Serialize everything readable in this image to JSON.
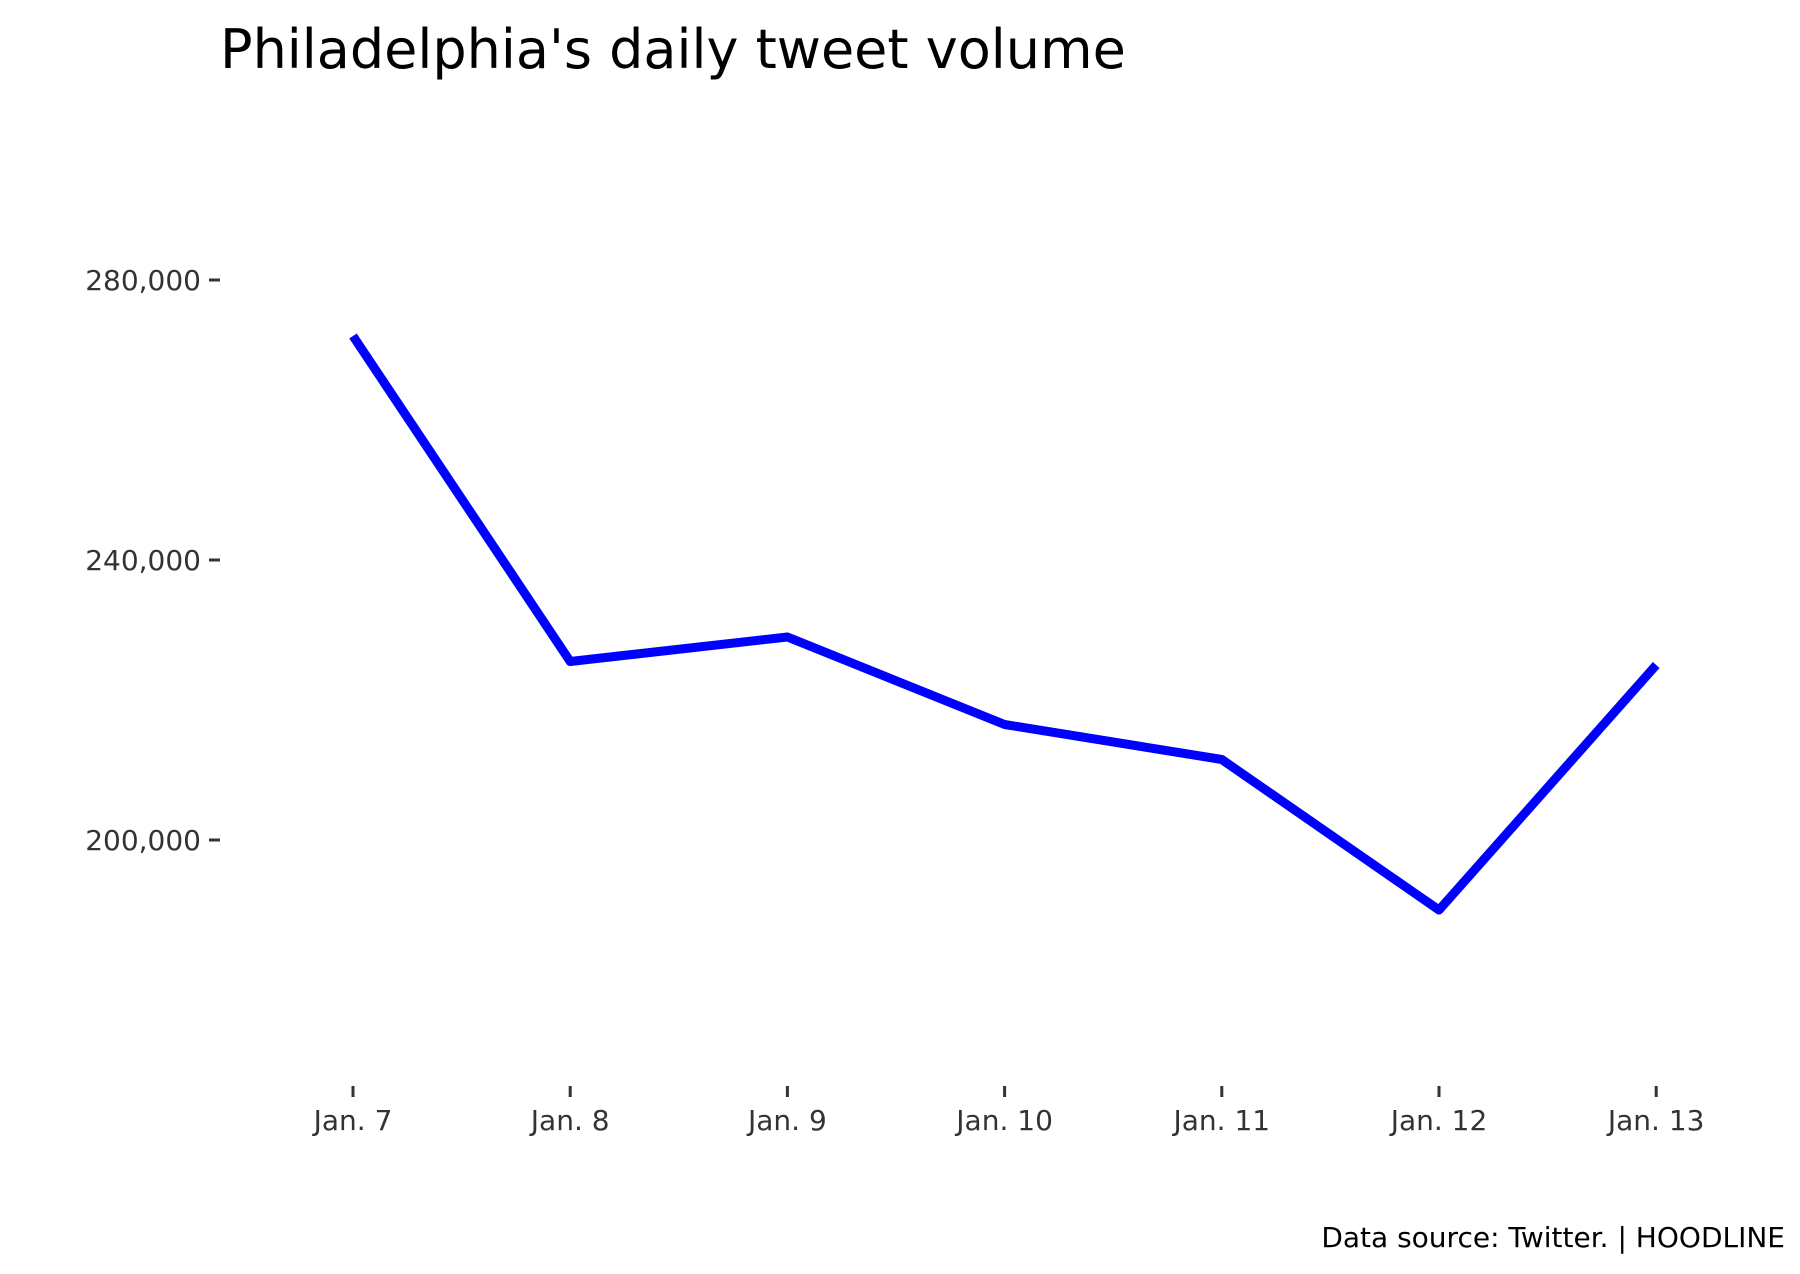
{
  "chart_data": {
    "type": "line",
    "title": "Philadelphia's daily tweet volume",
    "caption": "Data source: Twitter. | HOODLINE",
    "xlabel": "",
    "ylabel": "",
    "categories": [
      "Jan. 7",
      "Jan. 8",
      "Jan. 9",
      "Jan. 10",
      "Jan. 11",
      "Jan. 12",
      "Jan. 13"
    ],
    "series": [
      {
        "values": [
          272000,
          225500,
          229000,
          216500,
          211500,
          190000,
          225000
        ]
      }
    ],
    "yticks": [
      200000,
      240000,
      280000
    ],
    "ytick_labels": [
      "200,000",
      "240,000",
      "280,000"
    ],
    "ylim": [
      165000,
      295000
    ],
    "grid": false,
    "line_color": "#0000ff"
  }
}
